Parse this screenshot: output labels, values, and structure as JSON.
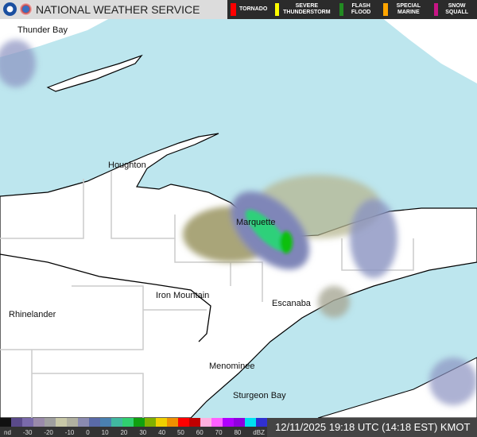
{
  "header": {
    "title": "NATIONAL WEATHER SERVICE",
    "logos": [
      "noaa-logo",
      "nws-logo"
    ]
  },
  "warnings": [
    {
      "label": "TORNADO",
      "color": "#ff0000"
    },
    {
      "label": "SEVERE THUNDERSTORM",
      "color": "#ffff00"
    },
    {
      "label": "FLASH FLOOD",
      "color": "#228b22"
    },
    {
      "label": "SPECIAL MARINE",
      "color": "#ffa500"
    },
    {
      "label": "SNOW SQUALL",
      "color": "#c71585"
    }
  ],
  "map": {
    "water_color": "#bde6ee",
    "land_color": "#ffffff",
    "cities": [
      "Thunder Bay",
      "Houghton",
      "Marquette",
      "Iron Mountain",
      "Rhinelander",
      "Escanaba",
      "Menominee",
      "Sturgeon Bay"
    ]
  },
  "legend": {
    "ticks": [
      "nd",
      "-30",
      "-20",
      "-10",
      "0",
      "10",
      "20",
      "30",
      "40",
      "50",
      "60",
      "70",
      "80",
      "dBZ"
    ],
    "colors": [
      "#111111",
      "#5a4a8a",
      "#7a6aaa",
      "#9a8aaa",
      "#a0a0a0",
      "#c8c8a8",
      "#b0b0a0",
      "#8a8ab0",
      "#5a6aa8",
      "#4a80b0",
      "#40b8a0",
      "#30d070",
      "#10a010",
      "#80b000",
      "#f0d000",
      "#f09000",
      "#ff0000",
      "#c00000",
      "#ffb0e0",
      "#ff60ff",
      "#b000ff",
      "#9000e0",
      "#00e0f0",
      "#3030d0"
    ]
  },
  "timestamp": "12/11/2025 19:18 UTC (14:18 EST) KMOT"
}
